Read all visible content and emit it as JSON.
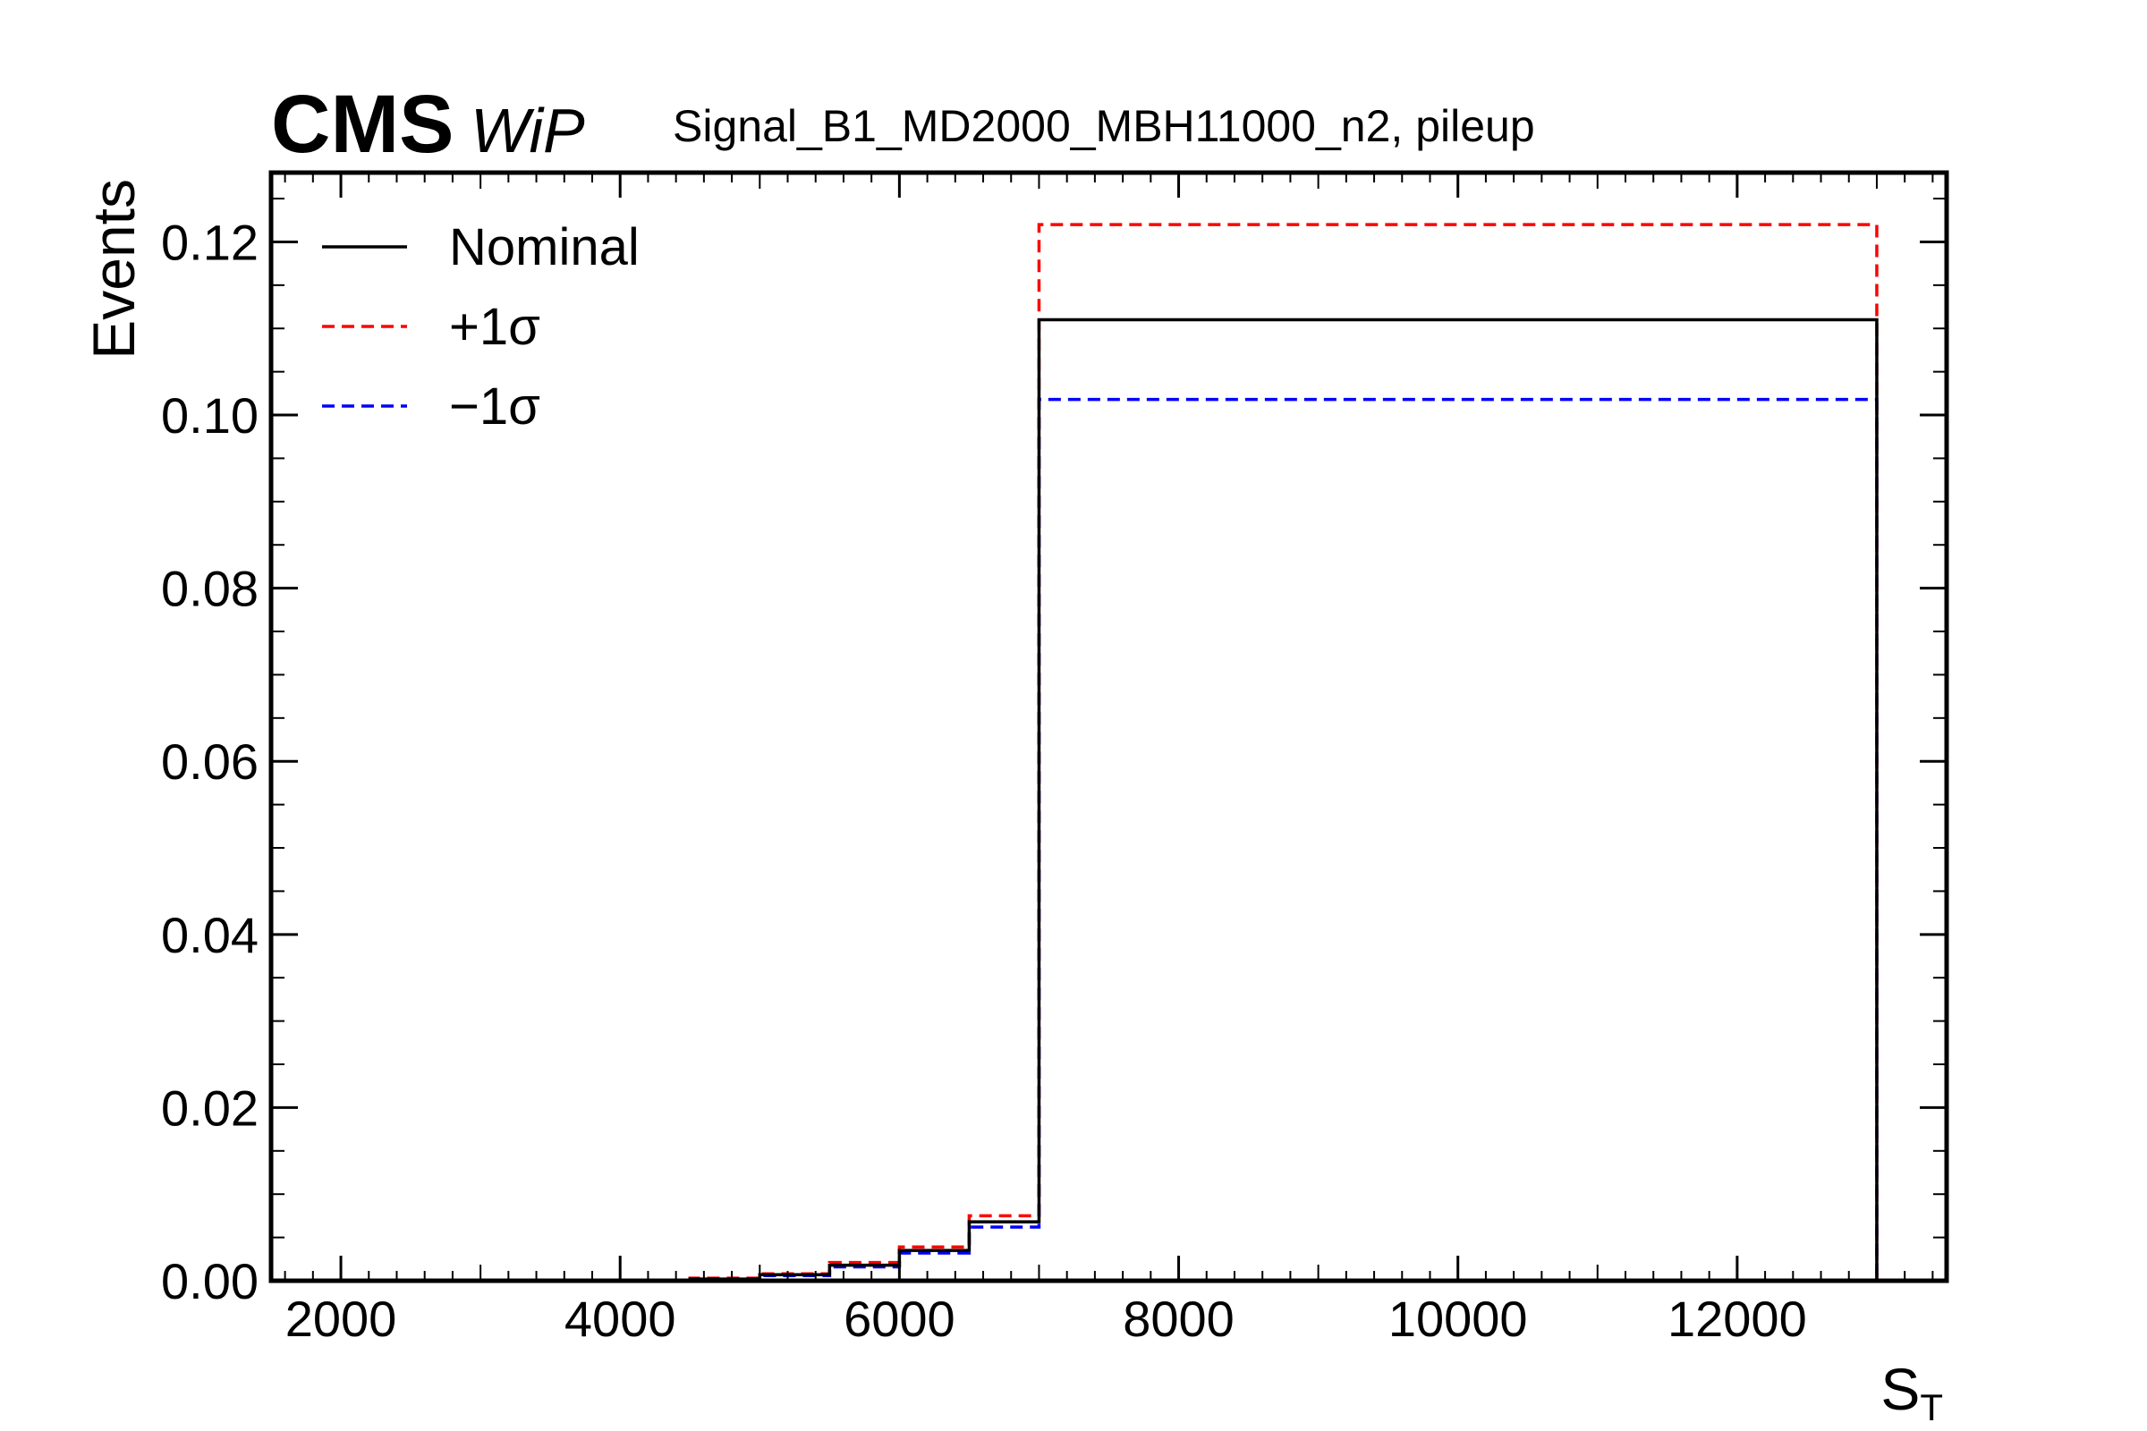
{
  "chart_data": {
    "type": "line",
    "header": {
      "experiment": "CMS",
      "status": "WiP"
    },
    "title": "Signal_B1_MD2000_MBH11000_n2, pileup",
    "xlabel": "S",
    "xlabel_sub": "T",
    "ylabel": "Events",
    "xlim": [
      1500,
      13500
    ],
    "ylim": [
      0,
      0.128
    ],
    "xticks": [
      2000,
      4000,
      6000,
      8000,
      10000,
      12000
    ],
    "xtick_labels": [
      "2000",
      "4000",
      "6000",
      "8000",
      "10000",
      "12000"
    ],
    "yticks": [
      0,
      0.02,
      0.04,
      0.06,
      0.08,
      0.1,
      0.12
    ],
    "ytick_labels": [
      "0.00",
      "0.02",
      "0.04",
      "0.06",
      "0.08",
      "0.10",
      "0.12"
    ],
    "legend_position": "top-left",
    "bin_edges": [
      4500,
      5000,
      5500,
      6000,
      6500,
      7000,
      13000
    ],
    "series": [
      {
        "name": "Nominal",
        "color": "#000000",
        "dashed": false,
        "values": [
          0.0002,
          0.0007,
          0.0018,
          0.0035,
          0.0068,
          0.111
        ]
      },
      {
        "name": "+1σ",
        "color": "#ff0000",
        "dashed": true,
        "values": [
          0.0003,
          0.0008,
          0.0021,
          0.0039,
          0.0075,
          0.122
        ]
      },
      {
        "name": "−1σ",
        "color": "#0000ff",
        "dashed": true,
        "values": [
          0.0002,
          0.0006,
          0.0016,
          0.0032,
          0.0062,
          0.1018
        ]
      }
    ]
  }
}
